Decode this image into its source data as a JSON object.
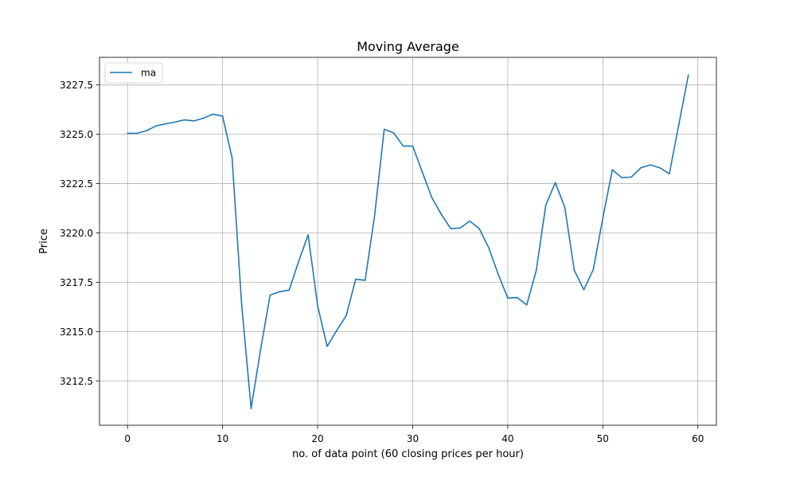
{
  "chart_data": {
    "type": "line",
    "title": "Moving Average",
    "xlabel": "no. of data point (60 closing prices per hour)",
    "ylabel": "Price",
    "xlim": [
      -2.95,
      61.95
    ],
    "ylim": [
      3210.25,
      3228.9
    ],
    "x_ticks": [
      0,
      10,
      20,
      30,
      40,
      50,
      60
    ],
    "y_ticks": [
      3212.5,
      3215.0,
      3217.5,
      3220.0,
      3222.5,
      3225.0,
      3227.5
    ],
    "grid": true,
    "legend": {
      "placement": "top-left",
      "entries": [
        "ma"
      ]
    },
    "series": [
      {
        "name": "ma",
        "color": "#1f77b4",
        "x": [
          0,
          1,
          2,
          3,
          4,
          5,
          6,
          7,
          8,
          9,
          10,
          11,
          12,
          13,
          14,
          15,
          16,
          17,
          18,
          19,
          20,
          21,
          22,
          23,
          24,
          25,
          26,
          27,
          28,
          29,
          30,
          31,
          32,
          33,
          34,
          35,
          36,
          37,
          38,
          39,
          40,
          41,
          42,
          43,
          44,
          45,
          46,
          47,
          48,
          49,
          50,
          51,
          52,
          53,
          54,
          55,
          56,
          57,
          58,
          59
        ],
        "values": [
          3225.05,
          3225.05,
          3225.18,
          3225.42,
          3225.53,
          3225.62,
          3225.73,
          3225.68,
          3225.82,
          3226.02,
          3225.92,
          3223.8,
          3216.4,
          3211.1,
          3214.1,
          3216.85,
          3217.02,
          3217.1,
          3218.55,
          3219.9,
          3216.3,
          3214.25,
          3215.05,
          3215.8,
          3217.65,
          3217.6,
          3220.9,
          3225.25,
          3225.07,
          3224.4,
          3224.4,
          3223.1,
          3221.8,
          3220.95,
          3220.22,
          3220.25,
          3220.6,
          3220.22,
          3219.25,
          3217.9,
          3216.7,
          3216.72,
          3216.35,
          3218.1,
          3221.4,
          3222.55,
          3221.3,
          3218.1,
          3217.12,
          3218.15,
          3220.75,
          3223.2,
          3222.8,
          3222.83,
          3223.3,
          3223.45,
          3223.3,
          3223.0,
          3225.5,
          3228.0
        ]
      }
    ]
  }
}
